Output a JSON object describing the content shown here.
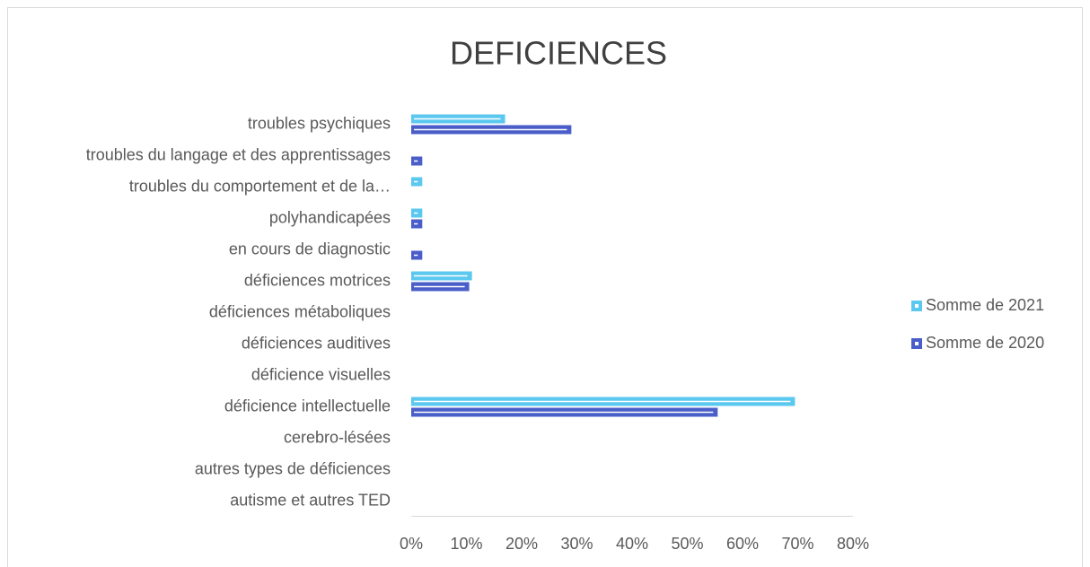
{
  "chart_data": {
    "type": "bar",
    "orientation": "horizontal",
    "title": "DEFICIENCES",
    "categories": [
      "troubles psychiques",
      "troubles du langage et des apprentissages",
      "troubles du comportement et de la…",
      "polyhandicapées",
      "en cours de diagnostic",
      "déficiences motrices",
      "déficiences métaboliques",
      "déficiences auditives",
      "déficience visuelles",
      "déficience intellectuelle",
      "cerebro-lésées",
      "autres types de déficiences",
      "autisme et autres TED"
    ],
    "series": [
      {
        "name": "Somme de 2021",
        "color": "#5bc8ef",
        "values": [
          17,
          null,
          2,
          2,
          null,
          11,
          null,
          null,
          null,
          69.5,
          null,
          null,
          null
        ]
      },
      {
        "name": "Somme de 2020",
        "color": "#4a5ec9",
        "values": [
          29,
          2,
          null,
          2,
          2,
          10.5,
          null,
          null,
          null,
          55.5,
          null,
          null,
          null
        ]
      }
    ],
    "xlim": [
      0,
      80
    ],
    "xticks": [
      {
        "value": 0,
        "label": "0%"
      },
      {
        "value": 10,
        "label": "10%"
      },
      {
        "value": 20,
        "label": "20%"
      },
      {
        "value": 30,
        "label": "30%"
      },
      {
        "value": 40,
        "label": "40%"
      },
      {
        "value": 50,
        "label": "50%"
      },
      {
        "value": 60,
        "label": "60%"
      },
      {
        "value": 70,
        "label": "70%"
      },
      {
        "value": 80,
        "label": "80%"
      }
    ],
    "grid": false,
    "legend": "right"
  }
}
